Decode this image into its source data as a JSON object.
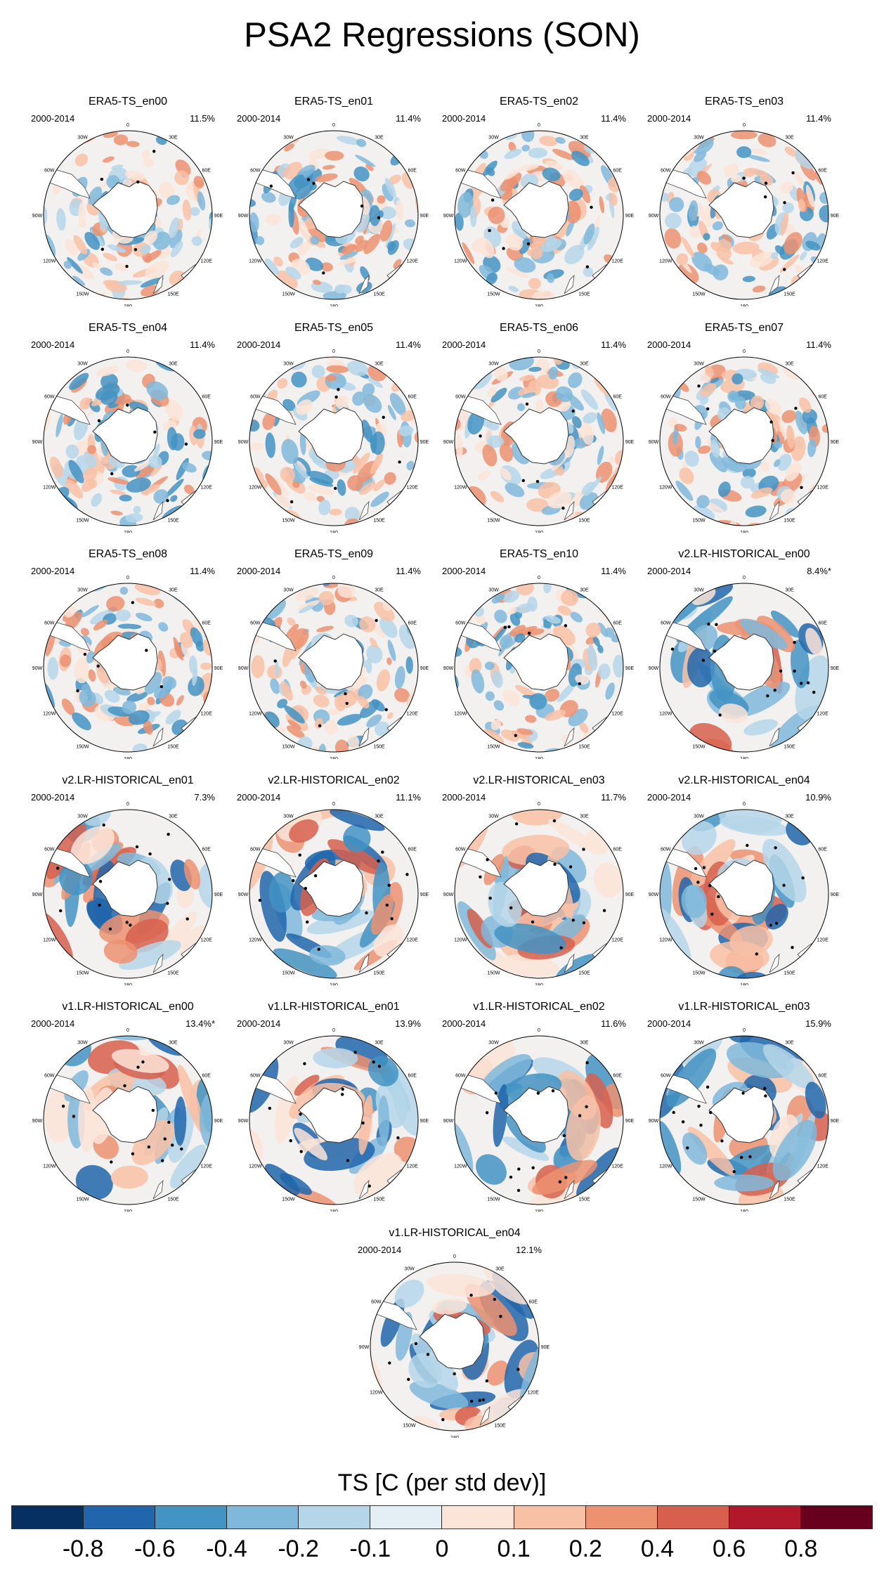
{
  "title": "PSA2 Regressions (SON)",
  "period_label": "2000-2014",
  "lon_labels": [
    "0",
    "30E",
    "60E",
    "90E",
    "120E",
    "150E",
    "180",
    "150W",
    "120W",
    "90W",
    "60W",
    "30W"
  ],
  "panels": [
    {
      "name": "ERA5-TS_en00",
      "pct": "11.5%"
    },
    {
      "name": "ERA5-TS_en01",
      "pct": "11.4%"
    },
    {
      "name": "ERA5-TS_en02",
      "pct": "11.4%"
    },
    {
      "name": "ERA5-TS_en03",
      "pct": "11.4%"
    },
    {
      "name": "ERA5-TS_en04",
      "pct": "11.4%"
    },
    {
      "name": "ERA5-TS_en05",
      "pct": "11.4%"
    },
    {
      "name": "ERA5-TS_en06",
      "pct": "11.4%"
    },
    {
      "name": "ERA5-TS_en07",
      "pct": "11.4%"
    },
    {
      "name": "ERA5-TS_en08",
      "pct": "11.4%"
    },
    {
      "name": "ERA5-TS_en09",
      "pct": "11.4%"
    },
    {
      "name": "ERA5-TS_en10",
      "pct": "11.4%"
    },
    {
      "name": "v2.LR-HISTORICAL_en00",
      "pct": "8.4%*"
    },
    {
      "name": "v2.LR-HISTORICAL_en01",
      "pct": "7.3%"
    },
    {
      "name": "v2.LR-HISTORICAL_en02",
      "pct": "11.1%"
    },
    {
      "name": "v2.LR-HISTORICAL_en03",
      "pct": "11.7%"
    },
    {
      "name": "v2.LR-HISTORICAL_en04",
      "pct": "10.9%"
    },
    {
      "name": "v1.LR-HISTORICAL_en00",
      "pct": "13.4%*"
    },
    {
      "name": "v1.LR-HISTORICAL_en01",
      "pct": "13.9%"
    },
    {
      "name": "v1.LR-HISTORICAL_en02",
      "pct": "11.6%"
    },
    {
      "name": "v1.LR-HISTORICAL_en03",
      "pct": "15.9%"
    },
    {
      "name": "v1.LR-HISTORICAL_en04",
      "pct": "12.1%"
    }
  ],
  "colorbar": {
    "title": "TS [C (per std dev)]",
    "labels": [
      "-0.8",
      "-0.6",
      "-0.4",
      "-0.2",
      "-0.1",
      "0",
      "0.1",
      "0.2",
      "0.4",
      "0.6",
      "0.8"
    ],
    "colors": [
      "#053061",
      "#2166ac",
      "#4393c3",
      "#7fb8da",
      "#b5d6e9",
      "#e4eef5",
      "#fbe4d8",
      "#f8c1a6",
      "#ec9271",
      "#d6604d",
      "#b2182b",
      "#67001f"
    ]
  }
}
